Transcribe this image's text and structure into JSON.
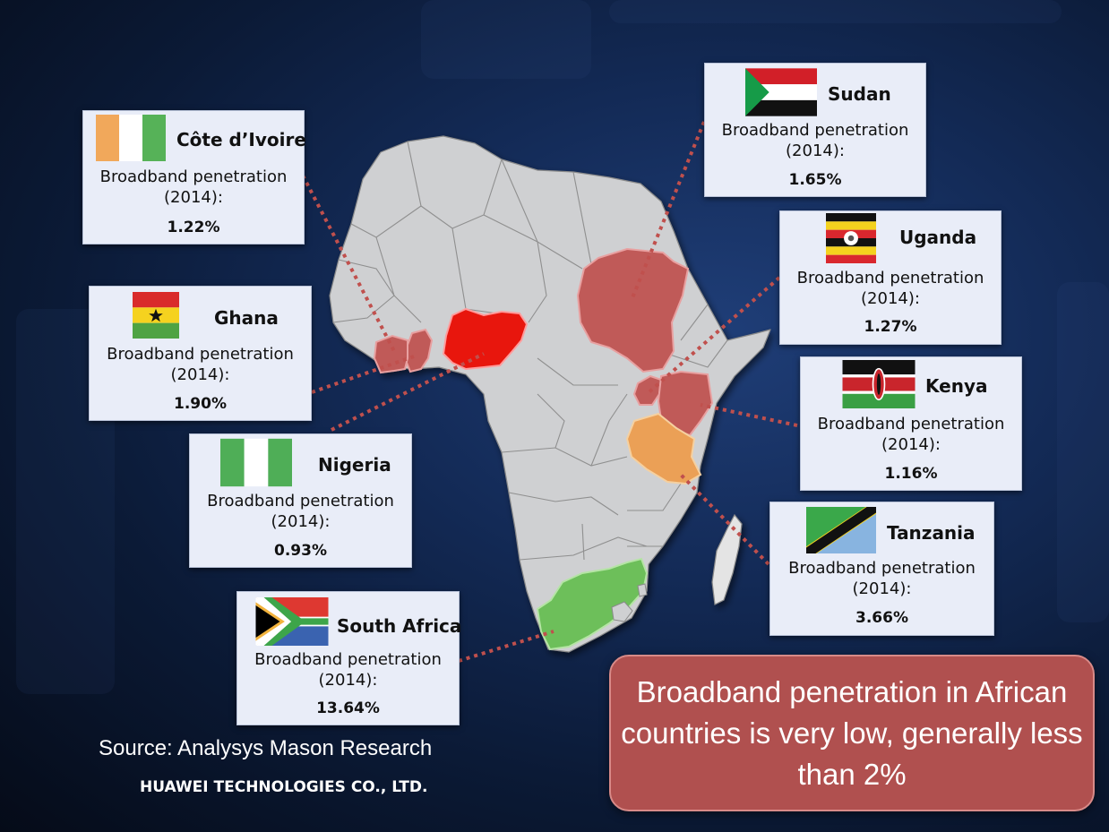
{
  "countries": [
    {
      "name": "Côte d’Ivoire",
      "metric": "Broadband penetration (2014):",
      "value": "1.22%",
      "flag": "cote-divoire-flag"
    },
    {
      "name": "Ghana",
      "metric": "Broadband penetration (2014):",
      "value": "1.90%",
      "flag": "ghana-flag"
    },
    {
      "name": "Nigeria",
      "metric": "Broadband penetration (2014):",
      "value": "0.93%",
      "flag": "nigeria-flag"
    },
    {
      "name": "South Africa",
      "metric": "Broadband penetration (2014):",
      "value": "13.64%",
      "flag": "south-africa-flag"
    },
    {
      "name": "Sudan",
      "metric": "Broadband penetration (2014):",
      "value": "1.65%",
      "flag": "sudan-flag"
    },
    {
      "name": "Uganda",
      "metric": "Broadband penetration (2014):",
      "value": "1.27%",
      "flag": "uganda-flag"
    },
    {
      "name": "Kenya",
      "metric": "Broadband penetration (2014):",
      "value": "1.16%",
      "flag": "kenya-flag"
    },
    {
      "name": "Tanzania",
      "metric": "Broadband penetration (2014):",
      "value": "3.66%",
      "flag": "tanzania-flag"
    }
  ],
  "source": "Source: Analysys Mason Research",
  "company": "HUAWEI TECHNOLOGIES CO., LTD.",
  "callout": "Broadband penetration in African countries is very low, generally less than 2%",
  "colors": {
    "land": "#cfd0d2",
    "border": "#8a8a8a",
    "highlight_red": "#c05a58",
    "nigeria_red": "#e8120e",
    "tanzania_orange": "#eba057",
    "south_africa_green": "#6dbf5a",
    "connector": "#c0504d",
    "callout_bg": "#b0504f"
  }
}
